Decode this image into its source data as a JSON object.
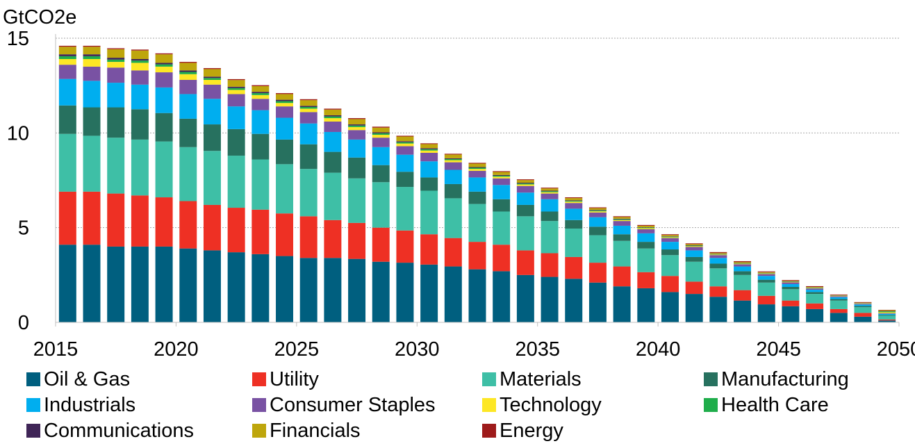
{
  "chart_data": {
    "type": "bar",
    "stacked": true,
    "title": "",
    "ylabel": "GtCO2e",
    "xlabel": "",
    "ylim": [
      0,
      15
    ],
    "yticks": [
      0,
      5,
      10,
      15
    ],
    "xticks": [
      2015,
      2020,
      2025,
      2030,
      2035,
      2040,
      2045,
      2050
    ],
    "grid": "horizontal-dotted",
    "legend_position": "bottom",
    "categories": [
      2015,
      2016,
      2017,
      2018,
      2019,
      2020,
      2021,
      2022,
      2023,
      2024,
      2025,
      2026,
      2027,
      2028,
      2029,
      2030,
      2031,
      2032,
      2033,
      2034,
      2035,
      2036,
      2037,
      2038,
      2039,
      2040,
      2041,
      2042,
      2043,
      2044,
      2045,
      2046,
      2047,
      2048,
      2049
    ],
    "series": [
      {
        "name": "Oil & Gas",
        "color": "#005f7f",
        "values": [
          4.1,
          4.1,
          4.0,
          4.0,
          4.0,
          3.9,
          3.8,
          3.7,
          3.6,
          3.5,
          3.4,
          3.4,
          3.35,
          3.2,
          3.15,
          3.05,
          2.95,
          2.8,
          2.7,
          2.5,
          2.4,
          2.3,
          2.1,
          1.9,
          1.8,
          1.6,
          1.5,
          1.35,
          1.15,
          0.95,
          0.85,
          0.7,
          0.5,
          0.3,
          0.1
        ]
      },
      {
        "name": "Utility",
        "color": "#ee3024",
        "values": [
          2.8,
          2.8,
          2.8,
          2.7,
          2.6,
          2.5,
          2.4,
          2.35,
          2.35,
          2.25,
          2.2,
          2.0,
          1.9,
          1.8,
          1.7,
          1.6,
          1.5,
          1.45,
          1.4,
          1.3,
          1.25,
          1.15,
          1.05,
          1.05,
          0.85,
          0.85,
          0.65,
          0.55,
          0.55,
          0.45,
          0.3,
          0.3,
          0.2,
          0.2,
          0.05
        ]
      },
      {
        "name": "Materials",
        "color": "#3ebfa6",
        "values": [
          3.05,
          2.95,
          2.95,
          2.95,
          2.95,
          2.85,
          2.85,
          2.75,
          2.65,
          2.6,
          2.5,
          2.5,
          2.35,
          2.4,
          2.3,
          2.3,
          2.1,
          2.0,
          1.75,
          1.8,
          1.7,
          1.5,
          1.45,
          1.35,
          1.25,
          1.1,
          1.05,
          0.95,
          0.8,
          0.7,
          0.6,
          0.5,
          0.45,
          0.3,
          0.2
        ]
      },
      {
        "name": "Manufacturing",
        "color": "#27715f",
        "values": [
          1.5,
          1.5,
          1.6,
          1.6,
          1.5,
          1.5,
          1.4,
          1.4,
          1.35,
          1.3,
          1.3,
          1.1,
          1.1,
          0.9,
          0.8,
          0.7,
          0.75,
          0.65,
          0.65,
          0.6,
          0.5,
          0.45,
          0.45,
          0.35,
          0.35,
          0.3,
          0.25,
          0.25,
          0.2,
          0.15,
          0.12,
          0.1,
          0.08,
          0.06,
          0.04
        ]
      },
      {
        "name": "Industrials",
        "color": "#00aeef",
        "values": [
          1.4,
          1.4,
          1.3,
          1.3,
          1.35,
          1.3,
          1.35,
          1.2,
          1.25,
          1.15,
          1.1,
          1.05,
          0.95,
          0.95,
          0.9,
          0.85,
          0.75,
          0.75,
          0.75,
          0.65,
          0.65,
          0.6,
          0.5,
          0.45,
          0.45,
          0.4,
          0.35,
          0.3,
          0.25,
          0.2,
          0.15,
          0.12,
          0.1,
          0.08,
          0.06
        ]
      },
      {
        "name": "Consumer Staples",
        "color": "#7952a3",
        "values": [
          0.75,
          0.75,
          0.8,
          0.75,
          0.8,
          0.75,
          0.75,
          0.65,
          0.6,
          0.6,
          0.6,
          0.55,
          0.5,
          0.5,
          0.45,
          0.45,
          0.4,
          0.35,
          0.35,
          0.35,
          0.3,
          0.3,
          0.25,
          0.25,
          0.22,
          0.2,
          0.18,
          0.15,
          0.12,
          0.1,
          0.09,
          0.07,
          0.05,
          0.04,
          0.03
        ]
      },
      {
        "name": "Technology",
        "color": "#fde725",
        "values": [
          0.3,
          0.4,
          0.3,
          0.4,
          0.3,
          0.3,
          0.25,
          0.22,
          0.2,
          0.18,
          0.18,
          0.18,
          0.16,
          0.15,
          0.14,
          0.12,
          0.11,
          0.1,
          0.09,
          0.08,
          0.07,
          0.07,
          0.06,
          0.05,
          0.05,
          0.04,
          0.04,
          0.03,
          0.03,
          0.03,
          0.02,
          0.02,
          0.02,
          0.02,
          0.05
        ]
      },
      {
        "name": "Health Care",
        "color": "#1fad4b",
        "values": [
          0.15,
          0.15,
          0.12,
          0.12,
          0.12,
          0.12,
          0.1,
          0.1,
          0.1,
          0.1,
          0.09,
          0.09,
          0.08,
          0.08,
          0.07,
          0.07,
          0.06,
          0.06,
          0.05,
          0.05,
          0.05,
          0.04,
          0.04,
          0.04,
          0.03,
          0.03,
          0.03,
          0.02,
          0.02,
          0.02,
          0.02,
          0.02,
          0.01,
          0.01,
          0.05
        ]
      },
      {
        "name": "Communications",
        "color": "#3f2557",
        "values": [
          0.1,
          0.1,
          0.1,
          0.08,
          0.08,
          0.08,
          0.07,
          0.07,
          0.07,
          0.07,
          0.06,
          0.06,
          0.06,
          0.05,
          0.05,
          0.05,
          0.04,
          0.04,
          0.04,
          0.04,
          0.03,
          0.03,
          0.03,
          0.03,
          0.02,
          0.02,
          0.02,
          0.02,
          0.02,
          0.01,
          0.01,
          0.01,
          0.01,
          0.01,
          0.02
        ]
      },
      {
        "name": "Financials",
        "color": "#bea60c",
        "values": [
          0.4,
          0.4,
          0.45,
          0.45,
          0.45,
          0.4,
          0.4,
          0.35,
          0.3,
          0.3,
          0.3,
          0.3,
          0.28,
          0.25,
          0.25,
          0.22,
          0.2,
          0.18,
          0.16,
          0.14,
          0.12,
          0.12,
          0.1,
          0.09,
          0.08,
          0.07,
          0.06,
          0.05,
          0.05,
          0.04,
          0.03,
          0.03,
          0.02,
          0.02,
          0.04
        ]
      },
      {
        "name": "Energy",
        "color": "#9e1b1b",
        "values": [
          0.05,
          0.05,
          0.05,
          0.05,
          0.05,
          0.05,
          0.05,
          0.05,
          0.05,
          0.05,
          0.05,
          0.05,
          0.05,
          0.05,
          0.04,
          0.04,
          0.04,
          0.04,
          0.04,
          0.04,
          0.04,
          0.04,
          0.04,
          0.04,
          0.04,
          0.04,
          0.04,
          0.04,
          0.04,
          0.04,
          0.04,
          0.04,
          0.03,
          0.03,
          0.02
        ]
      }
    ]
  }
}
